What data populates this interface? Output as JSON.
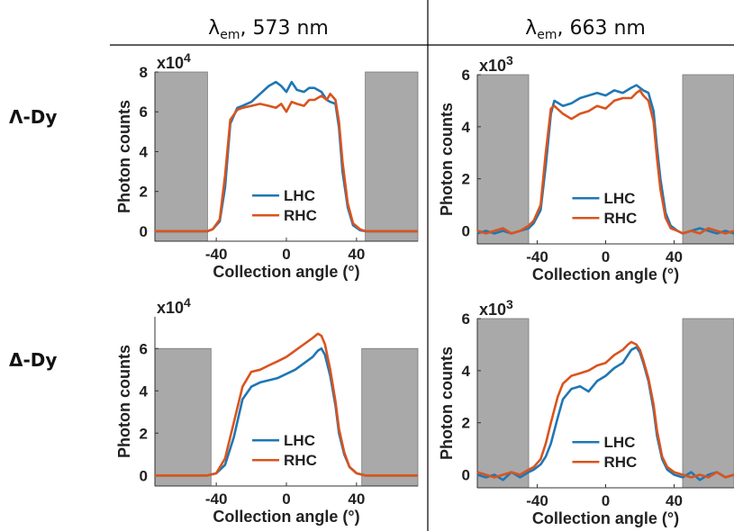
{
  "layout": {
    "col_titles": [
      {
        "lambda": "λ",
        "sub": "em",
        "rest": ", 573 nm"
      },
      {
        "lambda": "λ",
        "sub": "em",
        "rest": ", 663 nm"
      }
    ],
    "row_labels": [
      "Λ-Dy",
      "Δ-Dy"
    ]
  },
  "colors": {
    "LHC": "#1f77b4",
    "RHC": "#d9541e",
    "shade": "#a9a9a9"
  },
  "chart_data": [
    {
      "type": "line",
      "xlabel": "Collection angle (°)",
      "ylabel": "Photon counts",
      "exponent": "x10",
      "exponent_power": "4",
      "xlim": [
        -75,
        75
      ],
      "ylim": [
        -0.5,
        8
      ],
      "xticks": [
        "-40",
        "0",
        "40"
      ],
      "yticks": [
        "0",
        "2",
        "4",
        "6",
        "8"
      ],
      "shaded_regions": [
        [
          -75,
          -45
        ],
        [
          45,
          75
        ]
      ],
      "series": [
        {
          "name": "LHC",
          "x": [
            -75,
            -50,
            -45,
            -42,
            -38,
            -35,
            -32,
            -28,
            -25,
            -20,
            -15,
            -10,
            -6,
            -3,
            0,
            3,
            6,
            10,
            13,
            16,
            20,
            23,
            25,
            28,
            30,
            32,
            35,
            38,
            42,
            45,
            50,
            75
          ],
          "values": [
            0,
            0,
            0,
            0.1,
            0.5,
            2.2,
            5.4,
            6.2,
            6.3,
            6.5,
            6.9,
            7.3,
            7.5,
            7.3,
            7.0,
            7.5,
            7.1,
            7.0,
            7.2,
            7.2,
            7.0,
            6.6,
            6.5,
            6.4,
            5.2,
            3.0,
            1.2,
            0.3,
            0.05,
            0,
            0,
            0
          ]
        },
        {
          "name": "RHC",
          "x": [
            -75,
            -50,
            -45,
            -42,
            -38,
            -35,
            -32,
            -28,
            -25,
            -20,
            -15,
            -10,
            -6,
            -3,
            0,
            3,
            6,
            10,
            13,
            16,
            20,
            23,
            25,
            28,
            30,
            32,
            35,
            38,
            42,
            45,
            50,
            75
          ],
          "values": [
            0,
            0,
            0,
            0.1,
            0.6,
            2.8,
            5.6,
            6.1,
            6.2,
            6.3,
            6.4,
            6.3,
            6.2,
            6.4,
            6.0,
            6.5,
            6.4,
            6.3,
            6.6,
            6.6,
            6.8,
            6.6,
            6.9,
            6.6,
            5.5,
            3.5,
            1.4,
            0.4,
            0.1,
            0,
            0,
            0
          ]
        }
      ],
      "legend": [
        "LHC",
        "RHC"
      ]
    },
    {
      "type": "line",
      "xlabel": "Collection angle (°)",
      "ylabel": "Photon counts",
      "exponent": "x10",
      "exponent_power": "3",
      "xlim": [
        -75,
        75
      ],
      "ylim": [
        -0.5,
        6
      ],
      "xticks": [
        "-40",
        "0",
        "40"
      ],
      "yticks": [
        "0",
        "2",
        "4",
        "6"
      ],
      "shaded_regions": [
        [
          -75,
          -45
        ],
        [
          45,
          75
        ]
      ],
      "series": [
        {
          "name": "LHC",
          "x": [
            -75,
            -70,
            -65,
            -60,
            -55,
            -50,
            -45,
            -42,
            -38,
            -35,
            -32,
            -30,
            -25,
            -20,
            -15,
            -10,
            -5,
            0,
            5,
            10,
            15,
            18,
            20,
            22,
            25,
            28,
            30,
            32,
            35,
            38,
            42,
            45,
            50,
            55,
            60,
            65,
            70,
            75
          ],
          "values": [
            -0.1,
            0,
            -0.1,
            0,
            -0.1,
            0,
            0.1,
            0.3,
            0.8,
            2.5,
            4.5,
            5.0,
            4.8,
            4.9,
            5.1,
            5.2,
            5.3,
            5.2,
            5.4,
            5.3,
            5.5,
            5.6,
            5.5,
            5.4,
            5.3,
            4.6,
            3.2,
            2.0,
            0.7,
            0.2,
            0,
            -0.1,
            0,
            0.1,
            0,
            -0.1,
            0,
            -0.1
          ]
        },
        {
          "name": "RHC",
          "x": [
            -75,
            -70,
            -65,
            -60,
            -55,
            -50,
            -45,
            -42,
            -38,
            -35,
            -32,
            -30,
            -25,
            -20,
            -15,
            -10,
            -5,
            0,
            5,
            10,
            15,
            18,
            20,
            22,
            25,
            28,
            30,
            32,
            35,
            38,
            42,
            45,
            50,
            55,
            60,
            65,
            70,
            75
          ],
          "values": [
            0,
            -0.1,
            0,
            0.1,
            -0.1,
            0,
            0.2,
            0.4,
            1.0,
            3.0,
            4.7,
            4.8,
            4.5,
            4.3,
            4.5,
            4.6,
            4.8,
            4.7,
            5.0,
            5.1,
            5.1,
            5.3,
            5.4,
            5.2,
            5.0,
            4.2,
            2.8,
            1.6,
            0.5,
            0.1,
            0,
            -0.1,
            0,
            -0.1,
            0.1,
            0,
            -0.1,
            0
          ]
        }
      ],
      "legend": [
        "LHC",
        "RHC"
      ]
    },
    {
      "type": "line",
      "xlabel": "Collection angle (°)",
      "ylabel": "Photon counts",
      "exponent": "x10",
      "exponent_power": "4",
      "xlim": [
        -75,
        75
      ],
      "ylim": [
        -0.5,
        7.5
      ],
      "xticks": [
        "-40",
        "0",
        "40"
      ],
      "yticks": [
        "0",
        "2",
        "4",
        "6"
      ],
      "shaded_regions": [
        [
          -75,
          -43
        ],
        [
          43,
          75
        ]
      ],
      "series": [
        {
          "name": "LHC",
          "x": [
            -75,
            -50,
            -45,
            -40,
            -35,
            -30,
            -25,
            -20,
            -15,
            -10,
            -5,
            0,
            5,
            10,
            15,
            18,
            20,
            22,
            25,
            28,
            30,
            33,
            36,
            40,
            45,
            50,
            75
          ],
          "values": [
            0,
            0,
            0,
            0.1,
            0.5,
            1.8,
            3.6,
            4.2,
            4.4,
            4.5,
            4.6,
            4.8,
            5.0,
            5.3,
            5.6,
            5.9,
            6.0,
            5.7,
            4.7,
            3.3,
            2.0,
            1.0,
            0.4,
            0.1,
            0,
            0,
            0
          ]
        },
        {
          "name": "RHC",
          "x": [
            -75,
            -50,
            -45,
            -40,
            -35,
            -30,
            -25,
            -20,
            -15,
            -10,
            -5,
            0,
            5,
            10,
            15,
            18,
            20,
            22,
            25,
            28,
            30,
            33,
            36,
            40,
            45,
            50,
            75
          ],
          "values": [
            0,
            0,
            0,
            0.1,
            0.8,
            2.5,
            4.2,
            4.9,
            5.0,
            5.2,
            5.4,
            5.6,
            5.9,
            6.2,
            6.5,
            6.7,
            6.6,
            6.2,
            5.0,
            3.5,
            2.2,
            1.1,
            0.4,
            0.1,
            0,
            0,
            0
          ]
        }
      ],
      "legend": [
        "LHC",
        "RHC"
      ]
    },
    {
      "type": "line",
      "xlabel": "Collection angle (°)",
      "ylabel": "Photon counts",
      "exponent": "x10",
      "exponent_power": "3",
      "xlim": [
        -75,
        75
      ],
      "ylim": [
        -0.5,
        6
      ],
      "xticks": [
        "-40",
        "0",
        "40"
      ],
      "yticks": [
        "0",
        "2",
        "4",
        "6"
      ],
      "shaded_regions": [
        [
          -75,
          -45
        ],
        [
          45,
          75
        ]
      ],
      "series": [
        {
          "name": "LHC",
          "x": [
            -75,
            -70,
            -65,
            -60,
            -55,
            -50,
            -45,
            -42,
            -38,
            -35,
            -32,
            -28,
            -25,
            -20,
            -15,
            -10,
            -5,
            0,
            5,
            10,
            13,
            15,
            18,
            20,
            22,
            25,
            28,
            30,
            33,
            36,
            40,
            45,
            50,
            55,
            60,
            65,
            70,
            75
          ],
          "values": [
            0,
            -0.1,
            0,
            -0.2,
            0.1,
            -0.1,
            0.1,
            0.2,
            0.4,
            0.7,
            1.2,
            2.2,
            2.9,
            3.3,
            3.4,
            3.2,
            3.6,
            3.8,
            4.1,
            4.3,
            4.6,
            4.8,
            4.9,
            4.7,
            4.3,
            3.6,
            2.5,
            1.5,
            0.6,
            0.2,
            0,
            -0.1,
            0.1,
            -0.2,
            0,
            0.1,
            -0.1,
            0
          ]
        },
        {
          "name": "RHC",
          "x": [
            -75,
            -70,
            -65,
            -60,
            -55,
            -50,
            -45,
            -42,
            -38,
            -35,
            -32,
            -28,
            -25,
            -20,
            -15,
            -10,
            -5,
            0,
            5,
            10,
            13,
            15,
            18,
            20,
            22,
            25,
            28,
            30,
            33,
            36,
            40,
            45,
            50,
            55,
            60,
            65,
            70,
            75
          ],
          "values": [
            0.1,
            0,
            -0.1,
            0,
            0.1,
            0,
            0.2,
            0.3,
            0.6,
            1.2,
            2.0,
            3.0,
            3.5,
            3.8,
            3.9,
            4.0,
            4.2,
            4.3,
            4.6,
            4.8,
            5.0,
            5.1,
            5.0,
            4.8,
            4.4,
            3.7,
            2.7,
            1.7,
            0.7,
            0.3,
            0.1,
            0,
            -0.1,
            0,
            -0.1,
            0.1,
            -0.1,
            0
          ]
        }
      ],
      "legend": [
        "LHC",
        "RHC"
      ]
    }
  ]
}
